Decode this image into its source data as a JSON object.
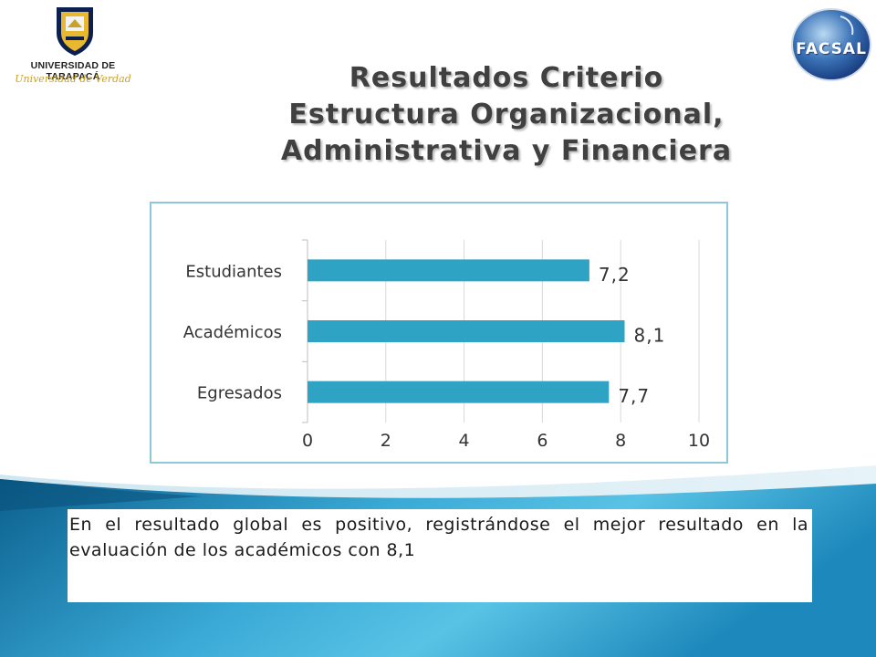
{
  "logos": {
    "university": {
      "name": "UNIVERSIDAD DE TARAPACÁ",
      "motto": "Universidad de Verdad"
    },
    "faculty": {
      "name": "FACSAL"
    }
  },
  "title_lines": [
    "Resultados Criterio",
    "Estructura Organizacional,",
    "Administrativa y Financiera"
  ],
  "chart_data": {
    "type": "bar",
    "orientation": "horizontal",
    "categories": [
      "Estudiantes",
      "Académicos",
      "Egresados"
    ],
    "values": [
      7.2,
      8.1,
      7.7
    ],
    "value_labels": [
      "7,2",
      "8,1",
      "7,7"
    ],
    "xlim": [
      0,
      10
    ],
    "x_ticks": [
      "0",
      "2",
      "4",
      "6",
      "8",
      "10"
    ],
    "grid": true,
    "legend": "none",
    "bar_color": "#2ea3c3"
  },
  "summary": "En el resultado global es positivo, registrándose el mejor resultado en la evaluación de los académicos con 8,1",
  "colors": {
    "title": "#404040",
    "chart_border": "#8dc8d8",
    "band_dark": "#0a5f8f",
    "band_light": "#5bc6e8"
  }
}
